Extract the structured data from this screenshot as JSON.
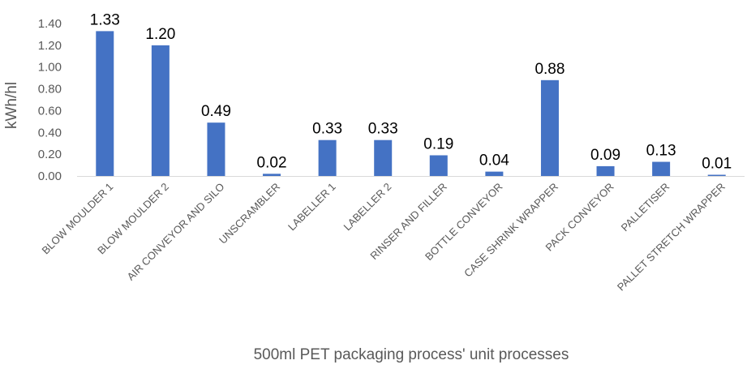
{
  "chart_data": {
    "type": "bar",
    "title": "",
    "xlabel": "500ml PET packaging process' unit processes",
    "ylabel": "kWh/hl",
    "ylim": [
      0,
      1.4
    ],
    "yticks": [
      "0.00",
      "0.20",
      "0.40",
      "0.60",
      "0.80",
      "1.00",
      "1.20",
      "1.40"
    ],
    "grid": false,
    "categories": [
      "BLOW MOULDER 1",
      "BLOW MOULDER 2",
      "AIR CONVEYOR AND SILO",
      "UNSCRAMBLER",
      "LABELLER 1",
      "LABELLER 2",
      "RINSER AND FILLER",
      "BOTTLE CONVEYOR",
      "CASE SHRINK WRAPPER",
      "PACK CONVEYOR",
      "PALLETISER",
      "PALLET STRETCH WRAPPER"
    ],
    "values": [
      1.33,
      1.2,
      0.49,
      0.02,
      0.33,
      0.33,
      0.19,
      0.04,
      0.88,
      0.09,
      0.13,
      0.01
    ],
    "data_labels": [
      "1.33",
      "1.20",
      "0.49",
      "0.02",
      "0.33",
      "0.33",
      "0.19",
      "0.04",
      "0.88",
      "0.09",
      "0.13",
      "0.01"
    ],
    "colors": {
      "bar": "#4472C4",
      "axis": "#D9D9D9",
      "text": "#595959"
    }
  }
}
